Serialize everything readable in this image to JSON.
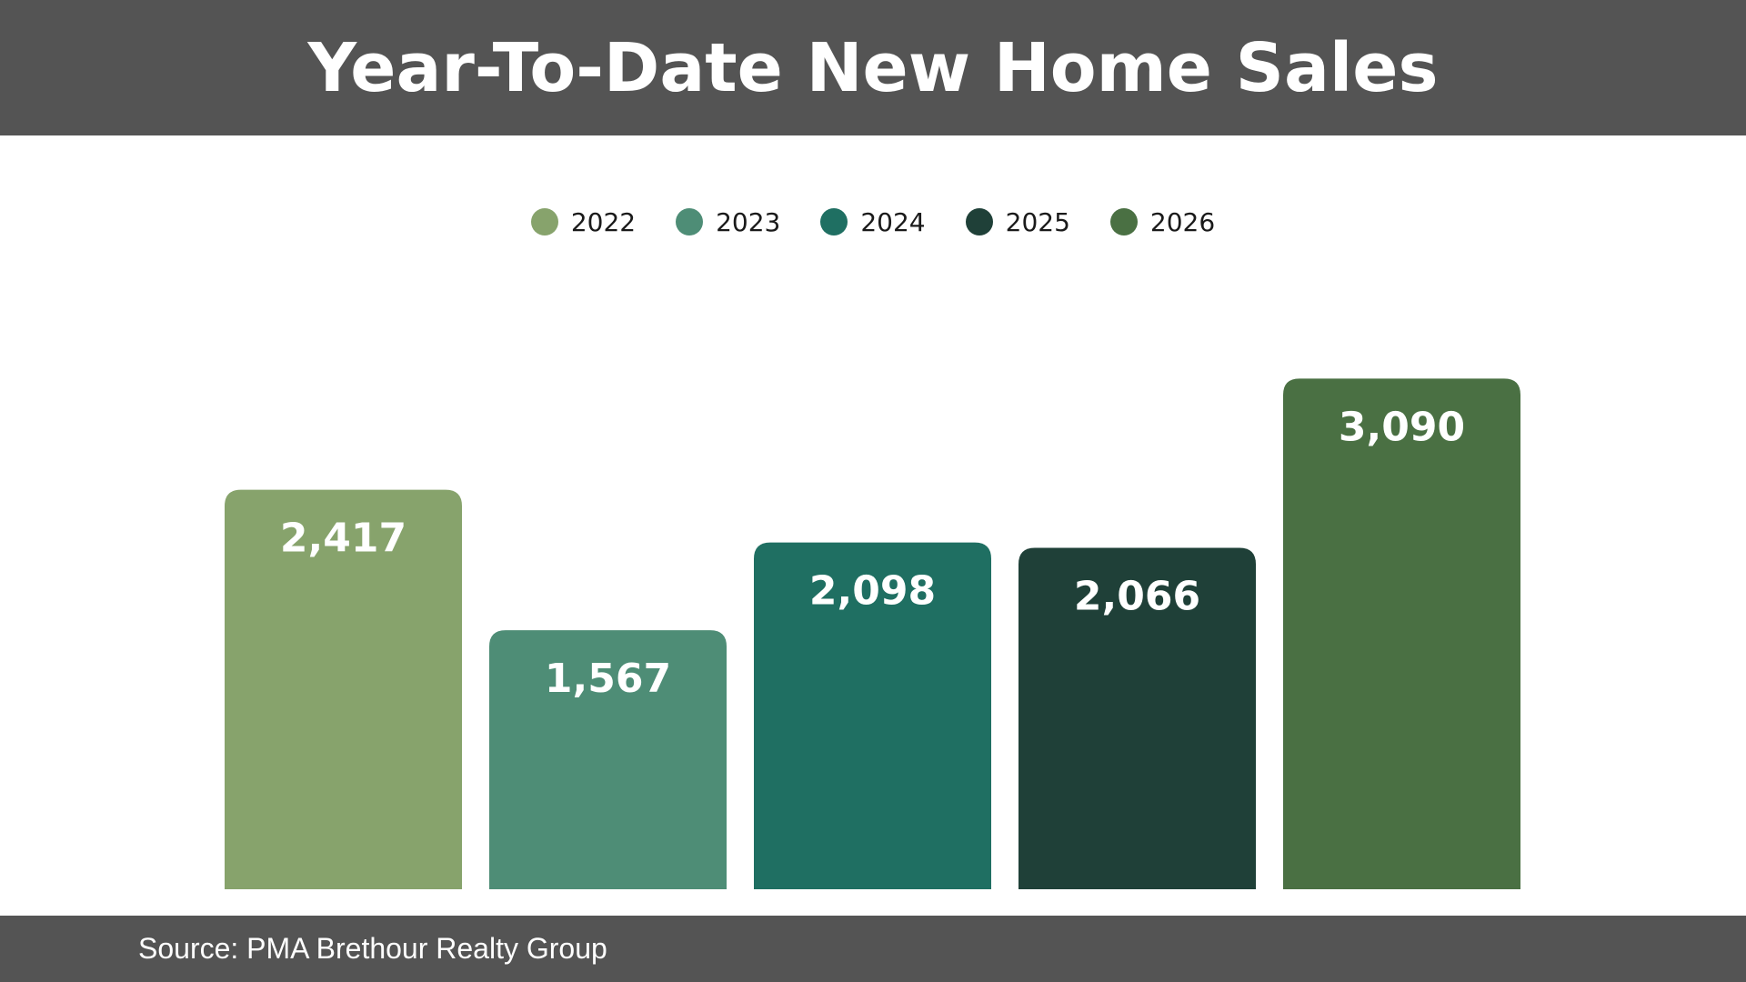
{
  "header": {
    "title": "Year-To-Date New Home Sales"
  },
  "footer": {
    "source": "Source: PMA Brethour Realty Group"
  },
  "colors": {
    "header_bg": "#545454",
    "bar_label": "#ffffff"
  },
  "chart_data": {
    "type": "bar",
    "title": "Year-To-Date New Home Sales",
    "xlabel": "",
    "ylabel": "",
    "categories": [
      "2022",
      "2023",
      "2024",
      "2025",
      "2026"
    ],
    "values": [
      2417,
      1567,
      2098,
      2066,
      3090
    ],
    "value_labels": [
      "2,417",
      "1,567",
      "2,098",
      "2,066",
      "3,090"
    ],
    "colors": [
      "#87A36C",
      "#4E8D76",
      "#1F6F62",
      "#1F4038",
      "#4A7043"
    ],
    "ylim": [
      0,
      3400
    ],
    "grid": false,
    "legend": "top-center",
    "axes_visible": false
  }
}
